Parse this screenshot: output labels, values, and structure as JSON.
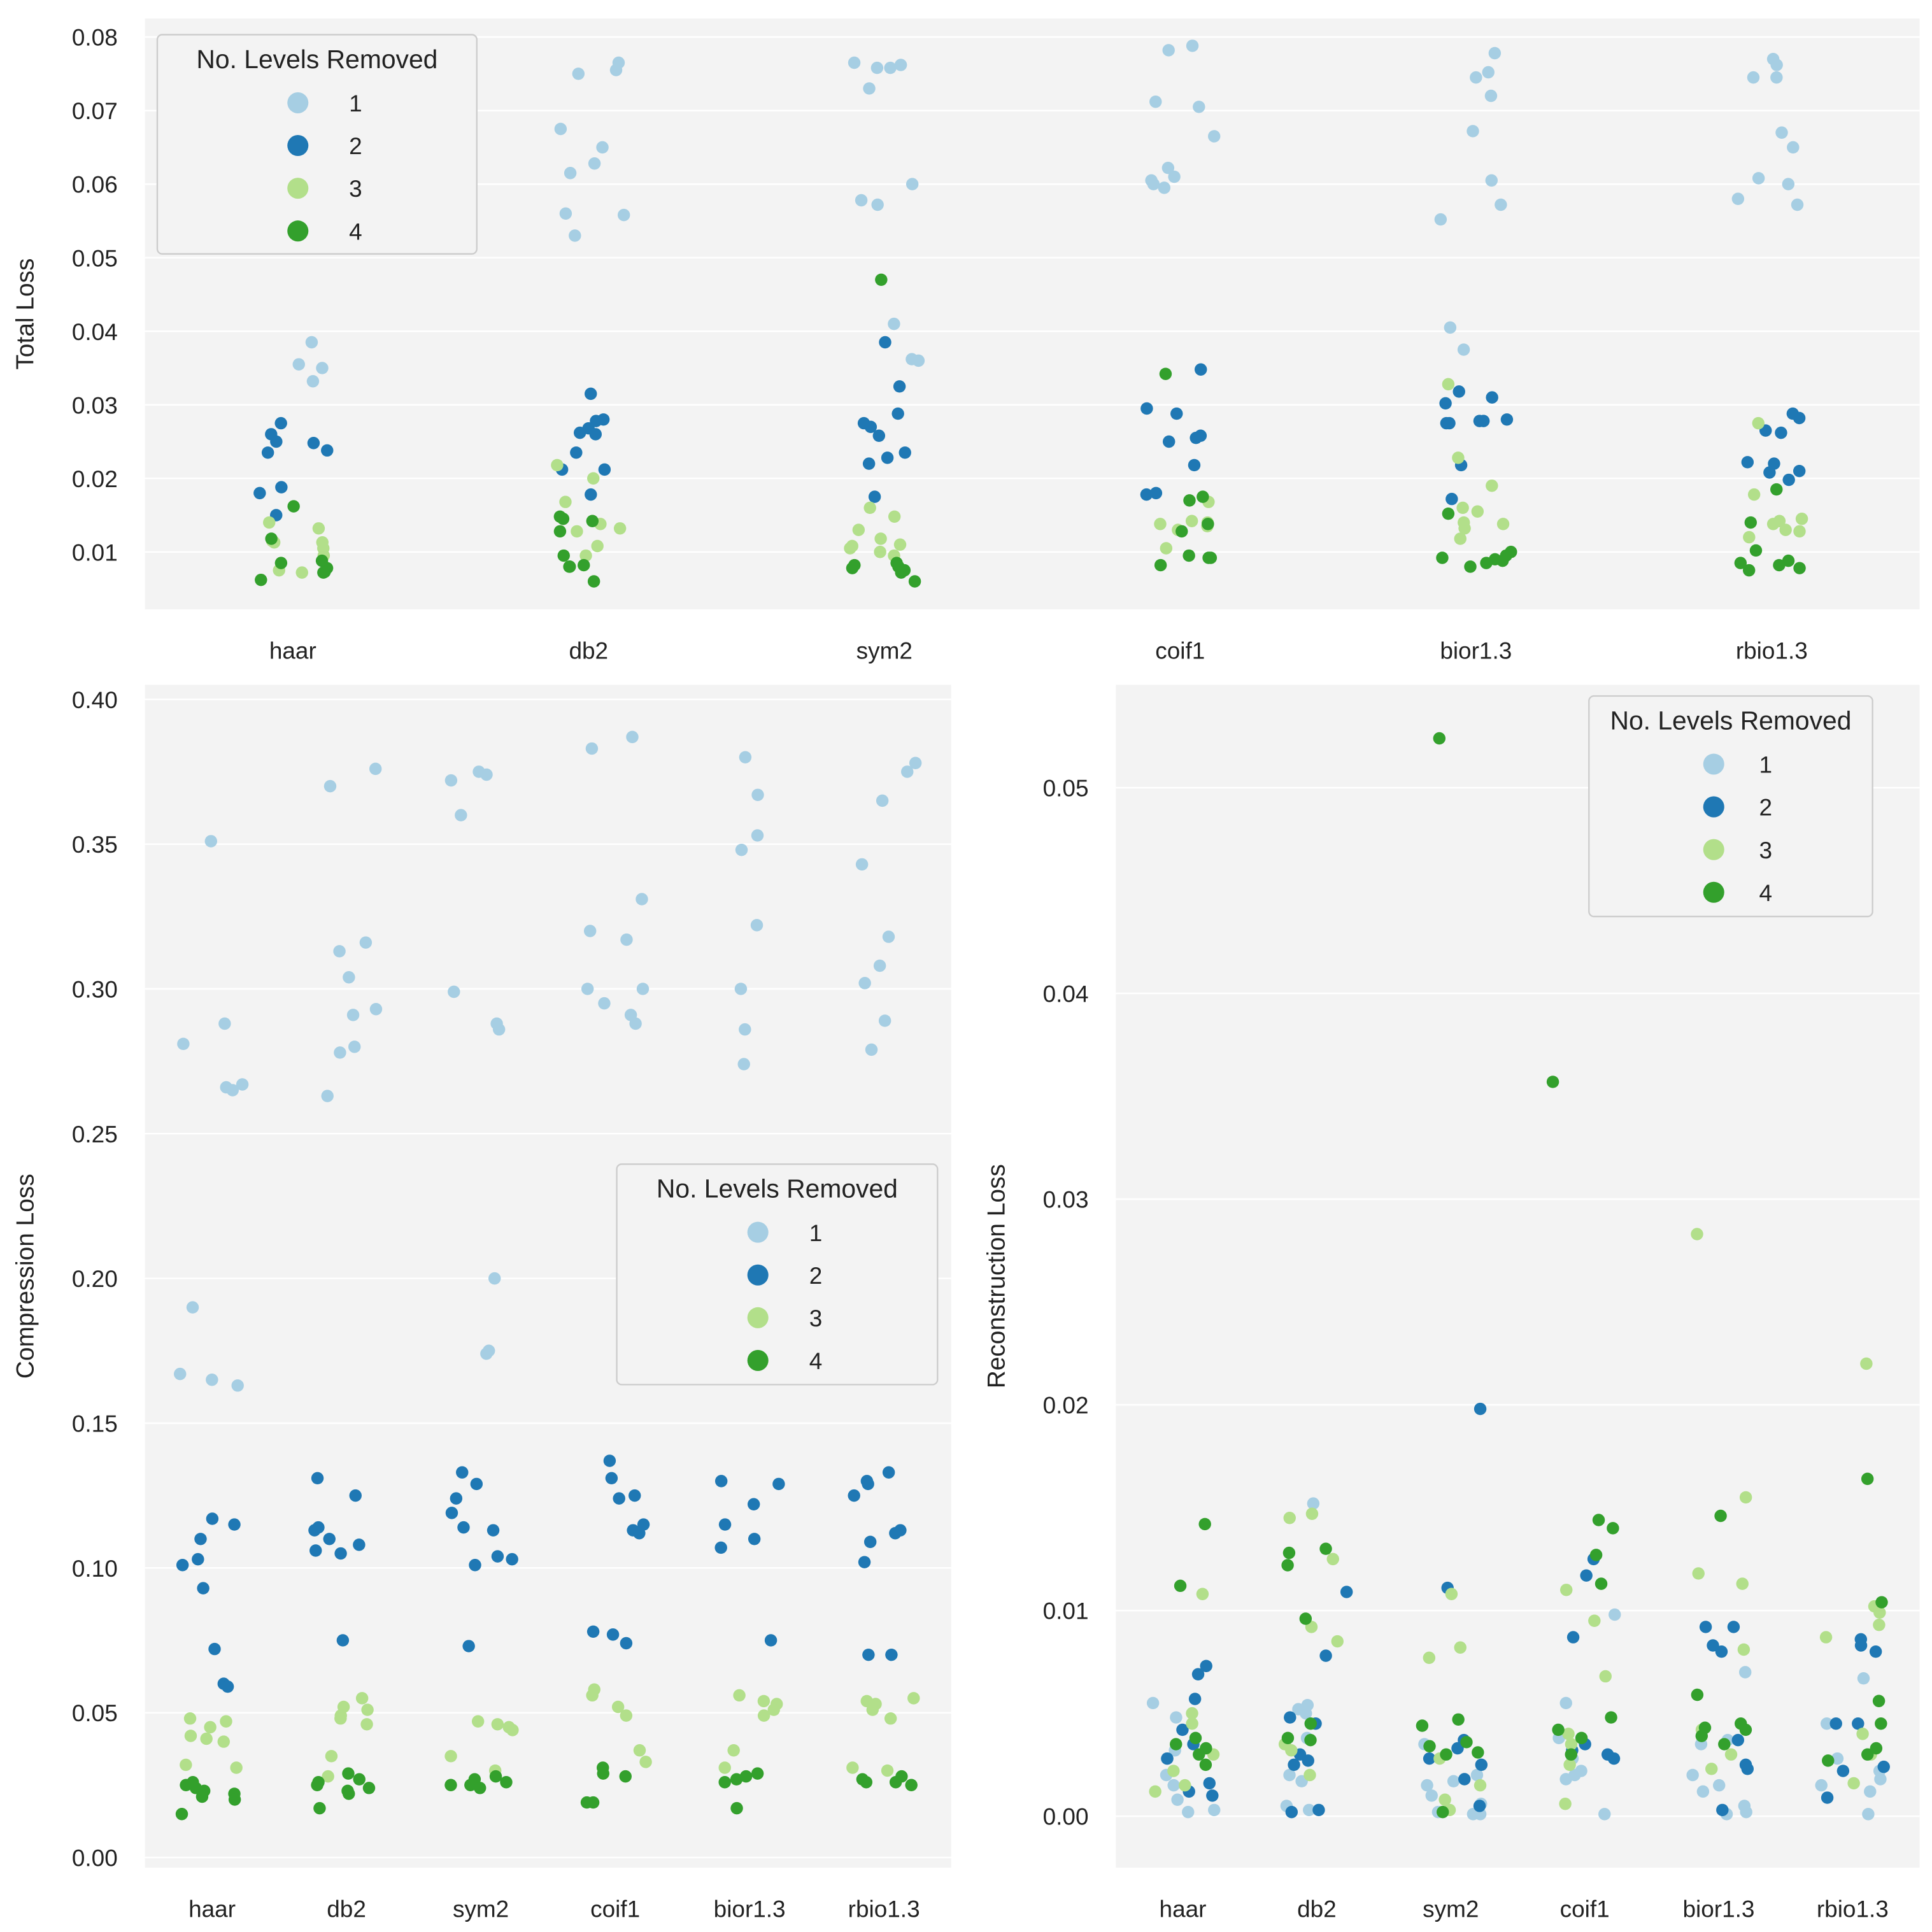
{
  "colors": {
    "1": "#a6cee3",
    "2": "#1f78b4",
    "3": "#b2df8a",
    "4": "#33a02c"
  },
  "legend": {
    "title": "No. Levels Removed",
    "labels": [
      "1",
      "2",
      "3",
      "4"
    ]
  },
  "chart_data": [
    {
      "type": "scatter",
      "kind": "stripplot",
      "ylabel": "Total Loss",
      "xlabel": "",
      "categories": [
        "haar",
        "db2",
        "sym2",
        "coif1",
        "bior1.3",
        "rbio1.3"
      ],
      "yticks": [
        0.01,
        0.02,
        0.03,
        0.04,
        0.05,
        0.06,
        0.07,
        0.08
      ],
      "ytick_labels": [
        "0.01",
        "0.02",
        "0.03",
        "0.04",
        "0.05",
        "0.06",
        "0.07",
        "0.08"
      ],
      "ylim": [
        0.0022,
        0.0825
      ],
      "legend_position": "top-left",
      "series": {
        "haar": {
          "1": [
            0.0715,
            0.0712,
            0.0595,
            0.06,
            0.055,
            0.054,
            0.0385,
            0.0355,
            0.035,
            0.0332
          ],
          "2": [
            0.0275,
            0.026,
            0.025,
            0.0248,
            0.0238,
            0.0235,
            0.0188,
            0.018,
            0.015
          ],
          "3": [
            0.014,
            0.0132,
            0.0115,
            0.0113,
            0.0113,
            0.0105,
            0.0095,
            0.0075,
            0.0072
          ],
          "4": [
            0.0162,
            0.0118,
            0.0088,
            0.0085,
            0.0078,
            0.0073,
            0.0072,
            0.0062
          ]
        },
        "db2": {
          "1": [
            0.0765,
            0.0755,
            0.075,
            0.0675,
            0.065,
            0.0628,
            0.0615,
            0.056,
            0.0558,
            0.053
          ],
          "2": [
            0.0315,
            0.028,
            0.0278,
            0.0268,
            0.0262,
            0.026,
            0.0235,
            0.0212,
            0.0212,
            0.0178
          ],
          "3": [
            0.0218,
            0.02,
            0.0168,
            0.0138,
            0.0132,
            0.0128,
            0.0108,
            0.0095
          ],
          "4": [
            0.0148,
            0.0145,
            0.0142,
            0.0128,
            0.0095,
            0.0082,
            0.008,
            0.008,
            0.006
          ]
        },
        "sym2": {
          "1": [
            0.0765,
            0.0762,
            0.0758,
            0.0758,
            0.073,
            0.06,
            0.0578,
            0.0572,
            0.041,
            0.0362,
            0.036
          ],
          "2": [
            0.0385,
            0.0325,
            0.0288,
            0.0275,
            0.027,
            0.0258,
            0.0235,
            0.0228,
            0.022,
            0.0175
          ],
          "3": [
            0.016,
            0.0148,
            0.013,
            0.0118,
            0.011,
            0.0108,
            0.0105,
            0.01,
            0.0095
          ],
          "4": [
            0.047,
            0.0085,
            0.0082,
            0.008,
            0.0078,
            0.0075,
            0.0072,
            0.006
          ]
        },
        "coif1": {
          "1": [
            0.0788,
            0.0782,
            0.0712,
            0.0705,
            0.0665,
            0.0622,
            0.061,
            0.0605,
            0.06,
            0.0595
          ],
          "2": [
            0.0348,
            0.0295,
            0.0288,
            0.0258,
            0.0255,
            0.025,
            0.0218,
            0.018,
            0.0178
          ],
          "3": [
            0.0168,
            0.0142,
            0.014,
            0.0138,
            0.0135,
            0.013,
            0.0105
          ],
          "4": [
            0.0342,
            0.0175,
            0.017,
            0.0138,
            0.0128,
            0.0095,
            0.0092,
            0.0092,
            0.0082
          ]
        },
        "bior1.3": {
          "1": [
            0.0778,
            0.0752,
            0.0745,
            0.072,
            0.0672,
            0.0605,
            0.0572,
            0.0552,
            0.0405,
            0.0375
          ],
          "2": [
            0.0318,
            0.031,
            0.0302,
            0.028,
            0.0278,
            0.0278,
            0.0275,
            0.0275,
            0.0218,
            0.0172
          ],
          "3": [
            0.0328,
            0.0228,
            0.019,
            0.016,
            0.0155,
            0.014,
            0.0138,
            0.0132,
            0.0118
          ],
          "4": [
            0.0152,
            0.01,
            0.0095,
            0.0092,
            0.009,
            0.0088,
            0.0085,
            0.008
          ]
        },
        "rbio1.3": {
          "1": [
            0.077,
            0.0762,
            0.0745,
            0.0745,
            0.067,
            0.065,
            0.0608,
            0.06,
            0.058,
            0.0572
          ],
          "2": [
            0.0288,
            0.0282,
            0.0265,
            0.0262,
            0.0222,
            0.022,
            0.021,
            0.0208,
            0.0198
          ],
          "3": [
            0.0275,
            0.0178,
            0.0145,
            0.0142,
            0.0138,
            0.013,
            0.0128,
            0.012
          ],
          "4": [
            0.0185,
            0.014,
            0.0102,
            0.0088,
            0.0085,
            0.0082,
            0.0078,
            0.0075
          ]
        }
      }
    },
    {
      "type": "scatter",
      "kind": "stripplot",
      "ylabel": "Compression Loss",
      "xlabel": "",
      "categories": [
        "haar",
        "db2",
        "sym2",
        "coif1",
        "bior1.3",
        "rbio1.3"
      ],
      "yticks": [
        0,
        0.05,
        0.1,
        0.15,
        0.2,
        0.25,
        0.3,
        0.35,
        0.4
      ],
      "ytick_labels": [
        "0.00",
        "0.05",
        "0.10",
        "0.15",
        "0.20",
        "0.25",
        "0.30",
        "0.35",
        "0.40"
      ],
      "ylim": [
        -0.0035,
        0.405
      ],
      "legend_position": "center-right",
      "series": {
        "haar": {
          "1": [
            0.351,
            0.288,
            0.281,
            0.267,
            0.266,
            0.265,
            0.19,
            0.167,
            0.165,
            0.163
          ],
          "2": [
            0.117,
            0.115,
            0.11,
            0.103,
            0.101,
            0.093,
            0.072,
            0.06,
            0.059
          ],
          "3": [
            0.048,
            0.047,
            0.045,
            0.042,
            0.041,
            0.04,
            0.032,
            0.031
          ],
          "4": [
            0.026,
            0.025,
            0.024,
            0.023,
            0.022,
            0.021,
            0.02,
            0.015
          ]
        },
        "db2": {
          "1": [
            0.376,
            0.37,
            0.316,
            0.313,
            0.304,
            0.293,
            0.291,
            0.28,
            0.278,
            0.263
          ],
          "2": [
            0.131,
            0.125,
            0.114,
            0.113,
            0.11,
            0.108,
            0.106,
            0.105,
            0.075
          ],
          "3": [
            0.055,
            0.052,
            0.051,
            0.049,
            0.048,
            0.046,
            0.035,
            0.028
          ],
          "4": [
            0.029,
            0.027,
            0.026,
            0.025,
            0.024,
            0.023,
            0.022,
            0.017
          ]
        },
        "sym2": {
          "1": [
            0.375,
            0.374,
            0.372,
            0.36,
            0.299,
            0.288,
            0.286,
            0.2,
            0.175,
            0.174
          ],
          "2": [
            0.133,
            0.129,
            0.124,
            0.119,
            0.114,
            0.113,
            0.104,
            0.103,
            0.101,
            0.073
          ],
          "3": [
            0.047,
            0.046,
            0.045,
            0.044,
            0.035,
            0.03
          ],
          "4": [
            0.028,
            0.027,
            0.026,
            0.025,
            0.025,
            0.024
          ]
        },
        "coif1": {
          "1": [
            0.387,
            0.383,
            0.331,
            0.32,
            0.317,
            0.3,
            0.3,
            0.295,
            0.291,
            0.288
          ],
          "2": [
            0.137,
            0.131,
            0.125,
            0.124,
            0.115,
            0.113,
            0.112,
            0.078,
            0.077,
            0.074
          ],
          "3": [
            0.058,
            0.056,
            0.052,
            0.049,
            0.037,
            0.033
          ],
          "4": [
            0.031,
            0.029,
            0.028,
            0.019,
            0.019
          ]
        },
        "bior1.3": {
          "1": [
            0.38,
            0.367,
            0.353,
            0.348,
            0.322,
            0.3,
            0.286,
            0.274
          ],
          "2": [
            0.13,
            0.129,
            0.122,
            0.115,
            0.11,
            0.107,
            0.075
          ],
          "3": [
            0.056,
            0.054,
            0.053,
            0.051,
            0.049,
            0.037,
            0.031
          ],
          "4": [
            0.029,
            0.028,
            0.027,
            0.026,
            0.017
          ]
        },
        "rbio1.3": {
          "1": [
            0.378,
            0.375,
            0.365,
            0.343,
            0.318,
            0.308,
            0.302,
            0.289,
            0.279
          ],
          "2": [
            0.133,
            0.13,
            0.129,
            0.125,
            0.113,
            0.112,
            0.109,
            0.102,
            0.07,
            0.07
          ],
          "3": [
            0.055,
            0.054,
            0.053,
            0.051,
            0.048,
            0.031,
            0.03
          ],
          "4": [
            0.028,
            0.027,
            0.026,
            0.026,
            0.025
          ]
        }
      }
    },
    {
      "type": "scatter",
      "kind": "stripplot",
      "ylabel": "Reconstruction Loss",
      "xlabel": "",
      "categories": [
        "haar",
        "db2",
        "sym2",
        "coif1",
        "bior1.3",
        "rbio1.3"
      ],
      "yticks": [
        0,
        0.01,
        0.02,
        0.03,
        0.04,
        0.05
      ],
      "ytick_labels": [
        "0.00",
        "0.01",
        "0.02",
        "0.03",
        "0.04",
        "0.05"
      ],
      "ylim": [
        -0.0025,
        0.055
      ],
      "legend_position": "top-right",
      "series": {
        "haar": {
          "1": [
            0.0055,
            0.0048,
            0.0032,
            0.0028,
            0.002,
            0.0015,
            0.0008,
            0.0003,
            0.0002
          ],
          "2": [
            0.0073,
            0.0069,
            0.0057,
            0.0042,
            0.0035,
            0.0028,
            0.0016,
            0.0012,
            0.001
          ],
          "3": [
            0.0108,
            0.005,
            0.0045,
            0.003,
            0.0022,
            0.0015,
            0.0012
          ],
          "4": [
            0.0142,
            0.0112,
            0.0038,
            0.0035,
            0.0033,
            0.003,
            0.0025
          ]
        },
        "db2": {
          "1": [
            0.0152,
            0.0054,
            0.0052,
            0.005,
            0.0038,
            0.002,
            0.0017,
            0.0005,
            0.0003
          ],
          "2": [
            0.0109,
            0.0078,
            0.0048,
            0.0045,
            0.003,
            0.0027,
            0.0025,
            0.0003,
            0.0002
          ],
          "3": [
            0.0147,
            0.0145,
            0.0125,
            0.0092,
            0.0085,
            0.0035,
            0.0032,
            0.002
          ],
          "4": [
            0.013,
            0.0128,
            0.0122,
            0.0096,
            0.0045,
            0.0038,
            0.0037
          ]
        },
        "sym2": {
          "1": [
            0.0035,
            0.002,
            0.0017,
            0.0015,
            0.001,
            0.0006,
            0.0002,
            0.0001,
            0.0001
          ],
          "2": [
            0.0198,
            0.0111,
            0.0037,
            0.0033,
            0.0028,
            0.0025,
            0.0018,
            0.0005
          ],
          "3": [
            0.0108,
            0.0082,
            0.0077,
            0.0028,
            0.0015,
            0.0008,
            0.0003
          ],
          "4": [
            0.0524,
            0.0047,
            0.0044,
            0.0036,
            0.0034,
            0.0031,
            0.003,
            0.0002
          ]
        },
        "coif1": {
          "1": [
            0.0098,
            0.0055,
            0.0038,
            0.0028,
            0.0022,
            0.002,
            0.0018,
            0.0001
          ],
          "2": [
            0.0125,
            0.0117,
            0.0087,
            0.0035,
            0.0032,
            0.003,
            0.0028
          ],
          "3": [
            0.011,
            0.0095,
            0.0068,
            0.004,
            0.0035,
            0.0025,
            0.0006
          ],
          "4": [
            0.0357,
            0.0144,
            0.014,
            0.0127,
            0.0113,
            0.0048,
            0.0042,
            0.0038,
            0.003
          ]
        },
        "bior1.3": {
          "1": [
            0.007,
            0.0037,
            0.0035,
            0.002,
            0.0015,
            0.0012,
            0.0005,
            0.0002,
            0.0001
          ],
          "2": [
            0.0092,
            0.0092,
            0.0083,
            0.008,
            0.0037,
            0.0025,
            0.0023,
            0.0003
          ],
          "3": [
            0.0283,
            0.0155,
            0.0118,
            0.0113,
            0.0081,
            0.0042,
            0.003,
            0.0023
          ],
          "4": [
            0.0146,
            0.0059,
            0.0045,
            0.0043,
            0.0042,
            0.0039,
            0.0035
          ]
        },
        "rbio1.3": {
          "1": [
            0.0067,
            0.0045,
            0.0028,
            0.0022,
            0.0018,
            0.0015,
            0.0012,
            0.0001
          ],
          "2": [
            0.0086,
            0.0083,
            0.008,
            0.0045,
            0.0045,
            0.0024,
            0.0022,
            0.0009
          ],
          "3": [
            0.022,
            0.0102,
            0.0099,
            0.0093,
            0.0087,
            0.004,
            0.003,
            0.0016
          ],
          "4": [
            0.0164,
            0.0104,
            0.0056,
            0.0045,
            0.0033,
            0.003,
            0.0027
          ]
        }
      }
    }
  ]
}
